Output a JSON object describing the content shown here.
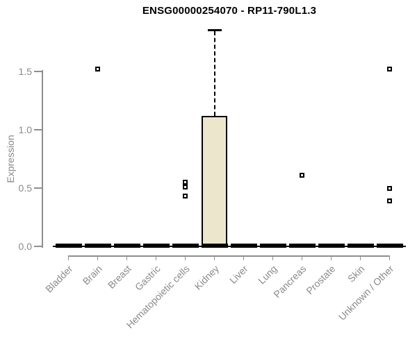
{
  "title": "ENSG00000254070 - RP11-790L1.3",
  "chart_data": {
    "type": "boxplot",
    "title": "ENSG00000254070 - RP11-790L1.3",
    "xlabel": "",
    "ylabel": "Expression",
    "ytick_labels": [
      "0.0",
      "0.5",
      "1.0",
      "1.5"
    ],
    "ytick_values": [
      0,
      0.5,
      1.0,
      1.5
    ],
    "ylim": [
      0,
      1.9
    ],
    "grid": false,
    "legend": null,
    "categories": [
      "Bladder",
      "Brain",
      "Breast",
      "Gastric",
      "Hematopoietic cells",
      "Kidney",
      "Liver",
      "Lung",
      "Pancreas",
      "Prostate",
      "Skin",
      "Unknown / Other"
    ],
    "boxes": [
      {
        "category": "Bladder",
        "low": 0,
        "q1": 0,
        "median": 0,
        "q3": 0,
        "high": 0,
        "outliers": []
      },
      {
        "category": "Brain",
        "low": 0,
        "q1": 0,
        "median": 0,
        "q3": 0,
        "high": 0,
        "outliers": [
          1.52
        ]
      },
      {
        "category": "Breast",
        "low": 0,
        "q1": 0,
        "median": 0,
        "q3": 0,
        "high": 0,
        "outliers": []
      },
      {
        "category": "Gastric",
        "low": 0,
        "q1": 0,
        "median": 0,
        "q3": 0,
        "high": 0,
        "outliers": []
      },
      {
        "category": "Hematopoietic cells",
        "low": 0,
        "q1": 0,
        "median": 0,
        "q3": 0,
        "high": 0,
        "outliers": [
          0.55,
          0.51,
          0.43
        ]
      },
      {
        "category": "Kidney",
        "low": 0,
        "q1": 0,
        "median": 0,
        "q3": 1.12,
        "high": 1.86,
        "outliers": []
      },
      {
        "category": "Liver",
        "low": 0,
        "q1": 0,
        "median": 0,
        "q3": 0,
        "high": 0,
        "outliers": []
      },
      {
        "category": "Lung",
        "low": 0,
        "q1": 0,
        "median": 0,
        "q3": 0,
        "high": 0,
        "outliers": []
      },
      {
        "category": "Pancreas",
        "low": 0,
        "q1": 0,
        "median": 0,
        "q3": 0,
        "high": 0,
        "outliers": [
          0.61
        ]
      },
      {
        "category": "Prostate",
        "low": 0,
        "q1": 0,
        "median": 0,
        "q3": 0,
        "high": 0,
        "outliers": []
      },
      {
        "category": "Skin",
        "low": 0,
        "q1": 0,
        "median": 0,
        "q3": 0,
        "high": 0,
        "outliers": []
      },
      {
        "category": "Unknown / Other",
        "low": 0,
        "q1": 0,
        "median": 0,
        "q3": 0,
        "high": 0,
        "outliers": [
          1.52,
          0.5,
          0.39
        ]
      }
    ],
    "colors": {
      "box_fill": "#ECE7CC",
      "box_border": "#000000",
      "whisker": "#000000",
      "outlier_border": "#000000",
      "outlier_fill": "#FFFFFF",
      "axis": "#8E8E8E",
      "tick_text": "#8A8A8A",
      "title_text": "#000000",
      "background": "#FFFFFF"
    }
  }
}
